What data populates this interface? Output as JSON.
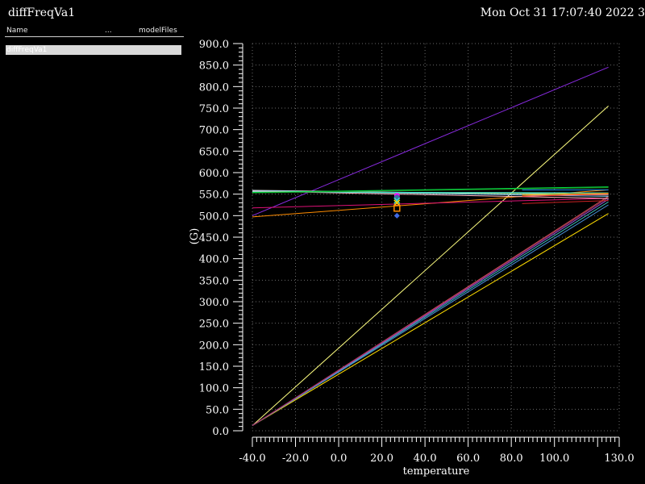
{
  "window": {
    "title": "diffFreqVa1",
    "datetime": "Mon Oct 31 17:07:40 2022  3"
  },
  "browser": {
    "columns": {
      "name": "Name",
      "dots": "...",
      "model": "modelFiles"
    },
    "rows": [
      "diffFreqVa1"
    ]
  },
  "chart_data": {
    "type": "line",
    "title": "",
    "xlabel": "temperature",
    "ylabel": "(G)",
    "xlim": [
      -40,
      130
    ],
    "ylim": [
      0,
      900
    ],
    "x_ticks": [
      -40,
      -20,
      0,
      20,
      40,
      60,
      80,
      100,
      130
    ],
    "x_tick_labels": [
      "-40.0",
      "-20.0",
      "0.0",
      "20.0",
      "40.0",
      "60.0",
      "80.0",
      "100.0",
      "130.0"
    ],
    "y_ticks": [
      0,
      50,
      100,
      150,
      200,
      250,
      300,
      350,
      400,
      450,
      500,
      550,
      600,
      650,
      700,
      750,
      800,
      850,
      900
    ],
    "y_tick_labels": [
      "0.0",
      "50.0",
      "100.0",
      "150.0",
      "200.0",
      "250.0",
      "300.0",
      "350.0",
      "400.0",
      "450.0",
      "500.0",
      "550.0",
      "600.0",
      "650.0",
      "700.0",
      "750.0",
      "800.0",
      "850.0",
      "900.0"
    ],
    "grid": true,
    "series": [
      {
        "color": "#8a2be2",
        "x": [
          -40,
          125
        ],
        "y": [
          500,
          845
        ]
      },
      {
        "color": "#ffff80",
        "x": [
          -40,
          125
        ],
        "y": [
          12,
          755
        ]
      },
      {
        "color": "#ffdd00",
        "x": [
          -40,
          125
        ],
        "y": [
          12,
          505
        ]
      },
      {
        "color": "#4a8fd8",
        "x": [
          -40,
          125
        ],
        "y": [
          12,
          525
        ]
      },
      {
        "color": "#3cb8b8",
        "x": [
          -40,
          125
        ],
        "y": [
          12,
          532
        ]
      },
      {
        "color": "#9a5ad8",
        "x": [
          -40,
          125
        ],
        "y": [
          12,
          538
        ]
      },
      {
        "color": "#d05050",
        "x": [
          -40,
          125
        ],
        "y": [
          12,
          545
        ]
      },
      {
        "color": "#a03070",
        "x": [
          -40,
          125
        ],
        "y": [
          12,
          542
        ]
      },
      {
        "color": "#ff8c00",
        "x": [
          -40,
          125
        ],
        "y": [
          497,
          560
        ]
      },
      {
        "color": "#dd1177",
        "x": [
          -40,
          125
        ],
        "y": [
          518,
          540
        ]
      },
      {
        "color": "#c8c8c8",
        "x": [
          -40,
          125
        ],
        "y": [
          559,
          548
        ]
      },
      {
        "color": "#87cefa",
        "x": [
          -40,
          125
        ],
        "y": [
          558,
          545
        ]
      },
      {
        "color": "#98fb98",
        "x": [
          -40,
          125
        ],
        "y": [
          556,
          550
        ]
      },
      {
        "color": "#ffb6c1",
        "x": [
          -40,
          125
        ],
        "y": [
          557,
          540
        ]
      },
      {
        "color": "#40e0d0",
        "x": [
          -40,
          125
        ],
        "y": [
          555,
          553
        ]
      },
      {
        "color": "#228b22",
        "x": [
          -40,
          125
        ],
        "y": [
          553,
          565
        ]
      },
      {
        "color": "#00dd44",
        "x": [
          -40,
          125
        ],
        "y": [
          554,
          567
        ]
      },
      {
        "color": "#1e90ff",
        "x": [
          85,
          125
        ],
        "y": [
          560,
          560
        ]
      },
      {
        "color": "#cc2222",
        "x": [
          85,
          125
        ],
        "y": [
          528,
          535
        ]
      },
      {
        "color": "#ff3030",
        "x": [
          85,
          125
        ],
        "y": [
          545,
          550
        ]
      },
      {
        "color": "#ffa500",
        "x": [
          85,
          125
        ],
        "y": [
          548,
          552
        ]
      }
    ],
    "markers": [
      {
        "color": "#ff00ff",
        "shape": "circle",
        "x": 27,
        "y": 546
      },
      {
        "color": "#3a6ea5",
        "shape": "circle",
        "x": 27,
        "y": 542
      },
      {
        "color": "#40e0d0",
        "shape": "cross",
        "x": 27,
        "y": 535
      },
      {
        "color": "#ffd700",
        "shape": "cross",
        "x": 27,
        "y": 530
      },
      {
        "color": "#ff8c00",
        "shape": "square",
        "x": 27,
        "y": 517
      },
      {
        "color": "#4169e1",
        "shape": "diamond",
        "x": 27,
        "y": 500
      }
    ]
  }
}
